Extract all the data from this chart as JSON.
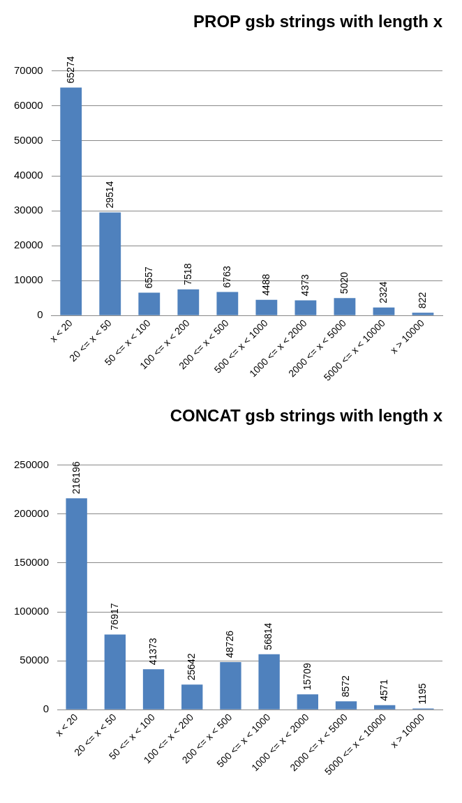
{
  "chart_data": [
    {
      "type": "bar",
      "title": "PROP gsb strings with length x",
      "categories": [
        "x < 20",
        "20 <= x < 50",
        "50 <= x < 100",
        "100 <= x < 200",
        "200 <= x < 500",
        "500 <= x < 1000",
        "1000 <= x < 2000",
        "2000 <= x < 5000",
        "5000 <= x < 10000",
        "x > 10000"
      ],
      "values": [
        65274,
        29514,
        6557,
        7518,
        6763,
        4488,
        4373,
        5020,
        2324,
        822
      ],
      "color": "#4f81bd",
      "ylim": [
        0,
        70000
      ],
      "yticks": [
        0,
        10000,
        20000,
        30000,
        40000,
        50000,
        60000,
        70000
      ],
      "grid": "y",
      "data_labels": true
    },
    {
      "type": "bar",
      "title": "CONCAT gsb strings with length x",
      "categories": [
        "x < 20",
        "20 <= x < 50",
        "50 <= x < 100",
        "100 <= x < 200",
        "200 <= x < 500",
        "500 <= x < 1000",
        "1000 <= x < 2000",
        "2000 <= x < 5000",
        "5000 <= x < 10000",
        "x > 10000"
      ],
      "values": [
        216196,
        76917,
        41373,
        25642,
        48726,
        56814,
        15709,
        8572,
        4571,
        1195
      ],
      "color": "#4f81bd",
      "ylim": [
        0,
        250000
      ],
      "yticks": [
        0,
        50000,
        100000,
        150000,
        200000,
        250000
      ],
      "grid": "y",
      "data_labels": true
    }
  ]
}
